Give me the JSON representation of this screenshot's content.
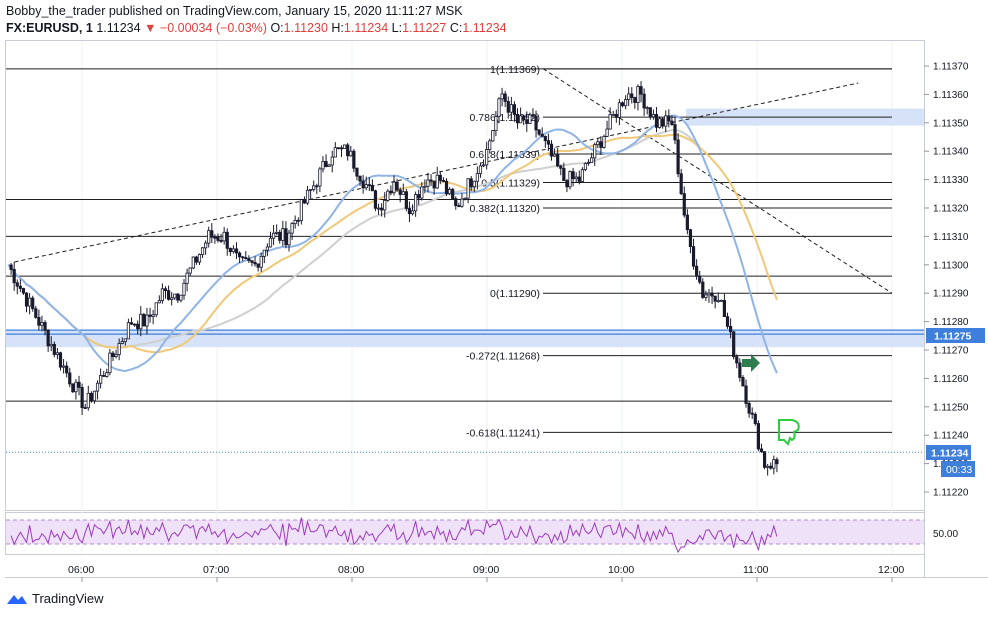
{
  "header": {
    "line1": "Bobby_the_trader published on TradingView.com, January 15, 2020 11:11:27 MSK",
    "symbol": "FX:EURUSD, 1",
    "last": "1.11234",
    "change": "−0.00034 (−0.03%)",
    "o_label": "O:",
    "o": "1.11230",
    "h_label": "H:",
    "h": "1.11234",
    "l_label": "L:",
    "l": "1.11227",
    "c_label": "C:",
    "c": "1.11234"
  },
  "footer": {
    "brand": "TradingView"
  },
  "colors": {
    "candle": "#1a1a2e",
    "ma_blue": "#8fb4e8",
    "ma_yellow": "#f0c878",
    "ma_gray": "#cfcfcf",
    "zone": "#d6e2f7",
    "rsi": "#9b3bbf",
    "rsi_band": "#efe1f7",
    "last_price": "#3d7fdb",
    "arrow": "#2e7d4f",
    "thumb": "#2ecc40"
  },
  "chart_data": {
    "type": "candlestick",
    "symbol": "FX:EURUSD",
    "timeframe": "1",
    "x_ticks": [
      "06:00",
      "07:00",
      "08:00",
      "09:00",
      "10:00",
      "11:00",
      "12:00"
    ],
    "y_ticks": [
      1.1122,
      1.1123,
      1.1124,
      1.1125,
      1.1126,
      1.1127,
      1.1128,
      1.1129,
      1.113,
      1.1131,
      1.1132,
      1.1133,
      1.1134,
      1.1135,
      1.1136,
      1.1137
    ],
    "y_tick_labels": [
      "1.11220",
      "1.11230",
      "1.11240",
      "1.11250",
      "1.11260",
      "1.11270",
      "1.11280",
      "1.11290",
      "1.11300",
      "1.11310",
      "1.11320",
      "1.11330",
      "1.11340",
      "1.11350",
      "1.11360",
      "1.11370"
    ],
    "ylim": [
      1.11215,
      1.11378
    ],
    "last_price": "1.11234",
    "countdown": "00:33",
    "zone_price_label": "1.11275",
    "rsi_label": "50.00",
    "fib_levels": [
      {
        "label": "1(1.11369)",
        "price": 1.11369
      },
      {
        "label": "0.786(1.11352)",
        "price": 1.11352
      },
      {
        "label": "0.618(1.11339)",
        "price": 1.11339
      },
      {
        "label": "0.5(1.11329)",
        "price": 1.11329
      },
      {
        "label": "0.382(1.11320)",
        "price": 1.1132
      },
      {
        "label": "0(1.11290)",
        "price": 1.1129
      },
      {
        "label": "-0.272(1.11268)",
        "price": 1.11268
      },
      {
        "label": "-0.618(1.11241)",
        "price": 1.11241
      }
    ],
    "horizontal_lines": [
      1.11369,
      1.11323,
      1.1131,
      1.11296,
      1.11252
    ],
    "zones": [
      {
        "from": 1.11349,
        "to": 1.11355
      },
      {
        "from": 1.11271,
        "to": 1.11277
      }
    ],
    "trendlines": [
      {
        "x": [
          "05:30",
          "11:45"
        ],
        "y": [
          1.11301,
          1.11364
        ],
        "dashed": true
      },
      {
        "x": [
          "09:25",
          "12:00"
        ],
        "y": [
          1.11369,
          1.1129
        ],
        "dashed": true
      }
    ],
    "candles_close": [
      1.113,
      1.1129,
      1.1128,
      1.1127,
      1.1126,
      1.1125,
      1.1126,
      1.1127,
      1.1128,
      1.1128,
      1.1129,
      1.1129,
      1.113,
      1.1131,
      1.1131,
      1.113,
      1.113,
      1.1131,
      1.1131,
      1.1132,
      1.1133,
      1.1134,
      1.1134,
      1.1133,
      1.1132,
      1.1133,
      1.1132,
      1.1133,
      1.1133,
      1.1132,
      1.1133,
      1.1134,
      1.1136,
      1.1135,
      1.1135,
      1.1134,
      1.1133,
      1.1133,
      1.1134,
      1.1135,
      1.1136,
      1.1136,
      1.1135,
      1.1135,
      1.1131,
      1.1129,
      1.1129,
      1.1127,
      1.1125,
      1.1123,
      1.1123
    ]
  }
}
